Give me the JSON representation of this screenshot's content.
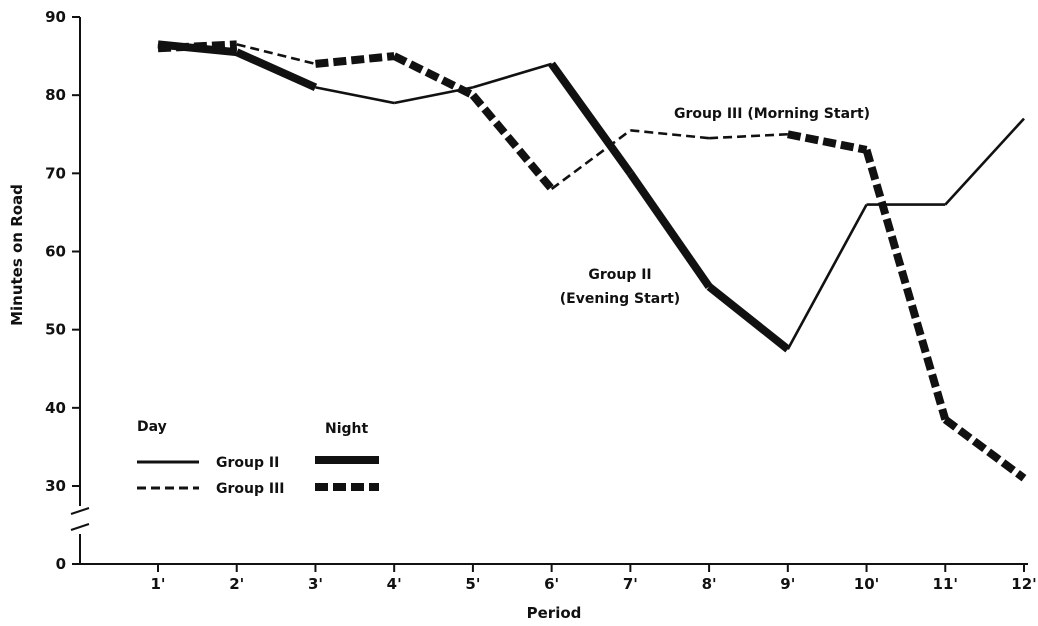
{
  "chart_data": {
    "type": "line",
    "title": "",
    "xlabel": "Period",
    "ylabel": "Minutes on Road",
    "categories": [
      "1'",
      "2'",
      "3'",
      "4'",
      "5'",
      "6'",
      "7'",
      "8'",
      "9'",
      "10'",
      "11'",
      "12'"
    ],
    "y_ticks": [
      "90",
      "80",
      "70",
      "60",
      "50",
      "40",
      "30",
      "0"
    ],
    "ylim": [
      30,
      90
    ],
    "axis_break": "between 0 and 30",
    "grid": false,
    "series": [
      {
        "name": "Group II",
        "values": [
          86.5,
          85.5,
          81,
          79,
          81,
          84,
          70,
          55.5,
          47.5,
          66,
          66,
          77
        ],
        "periods": [
          "night",
          "night",
          "day",
          "day",
          "day",
          "night",
          "night",
          "night",
          "day",
          "day",
          "day",
          "day"
        ],
        "color": "#111111"
      },
      {
        "name": "Group III",
        "values": [
          86,
          86.5,
          84,
          85,
          80,
          68,
          75.5,
          74.5,
          75,
          73,
          38.5,
          31
        ],
        "periods": [
          "night",
          "day",
          "night",
          "night",
          "night",
          "day",
          "day",
          "day",
          "night",
          "night",
          "night",
          "night"
        ],
        "color": "#111111"
      }
    ],
    "annotations": {
      "group3": "Group III  (Morning Start)",
      "group2_line1": "Group II",
      "group2_line2": "(Evening Start)"
    },
    "legend": {
      "placement": "bottom-left",
      "day_header": "Day",
      "night_header": "Night",
      "row1": "Group II",
      "row2": "Group III"
    }
  }
}
